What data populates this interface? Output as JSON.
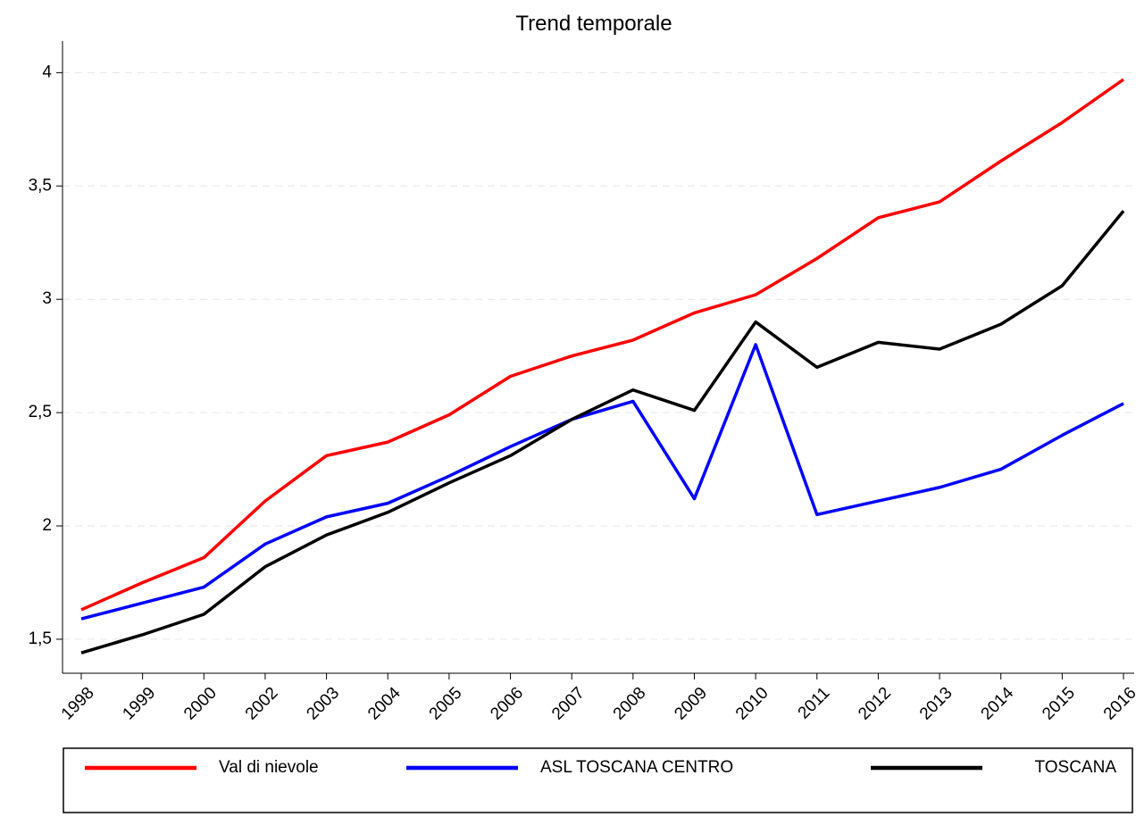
{
  "chart_data": {
    "type": "line",
    "title": "Trend temporale",
    "categories": [
      "1998",
      "1999",
      "2000",
      "2002",
      "2003",
      "2004",
      "2005",
      "2006",
      "2007",
      "2008",
      "2009",
      "2010",
      "2011",
      "2012",
      "2013",
      "2014",
      "2015",
      "2016"
    ],
    "series": [
      {
        "name": "Val di nievole",
        "color": "#ff0000",
        "values": [
          1.63,
          1.75,
          1.86,
          2.11,
          2.31,
          2.37,
          2.49,
          2.66,
          2.75,
          2.82,
          2.94,
          3.02,
          3.18,
          3.36,
          3.43,
          3.61,
          3.78,
          3.97
        ]
      },
      {
        "name": "ASL TOSCANA CENTRO",
        "color": "#0000ff",
        "values": [
          1.59,
          1.66,
          1.73,
          1.92,
          2.04,
          2.1,
          2.22,
          2.35,
          2.47,
          2.55,
          2.12,
          2.8,
          2.05,
          2.11,
          2.17,
          2.25,
          2.4,
          2.54
        ]
      },
      {
        "name": "TOSCANA",
        "color": "#000000",
        "values": [
          1.44,
          1.52,
          1.61,
          1.82,
          1.96,
          2.06,
          2.19,
          2.31,
          2.47,
          2.6,
          2.51,
          2.9,
          2.7,
          2.81,
          2.78,
          2.89,
          3.06,
          3.39
        ]
      }
    ],
    "ylim": [
      1.35,
      4.1
    ],
    "yticks": [
      {
        "value": 1.5,
        "label": "1,5"
      },
      2,
      {
        "value": 2.5,
        "label": "2,5"
      },
      3,
      {
        "value": 3.5,
        "label": "3,5"
      },
      4
    ],
    "grid": true,
    "legend": "bottom"
  }
}
